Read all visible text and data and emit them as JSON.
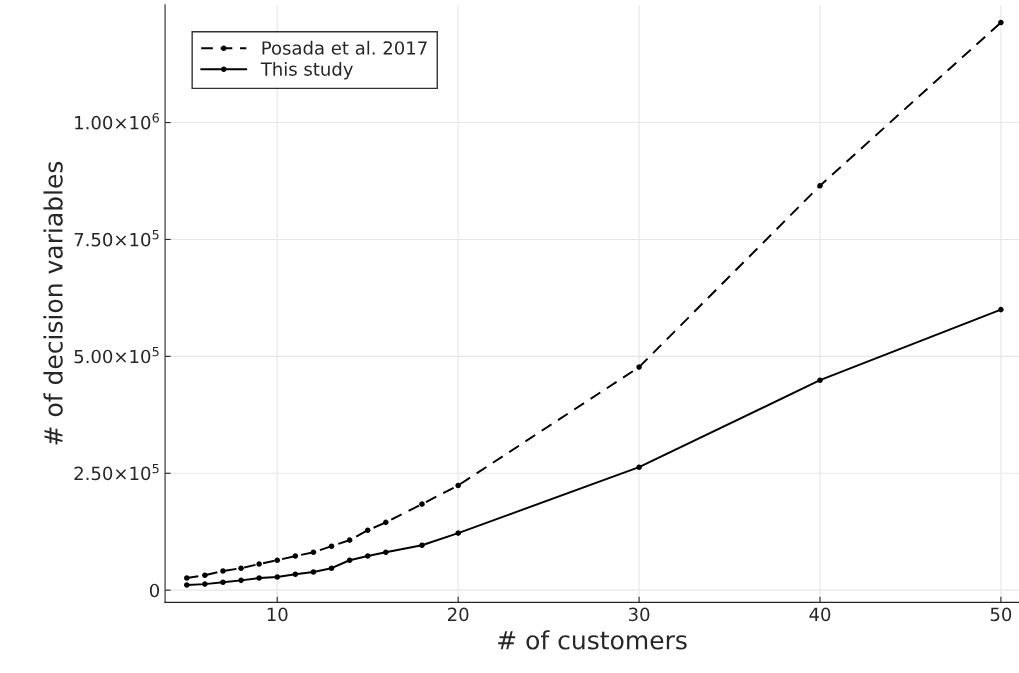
{
  "chart_data": {
    "type": "line",
    "xlabel": "# of customers",
    "ylabel": "# of decision variables",
    "x": [
      5,
      6,
      7,
      8,
      9,
      10,
      11,
      12,
      13,
      14,
      15,
      16,
      18,
      20,
      30,
      40,
      50
    ],
    "series": [
      {
        "name": "Posada et al. 2017",
        "color": "#000000",
        "line_style": "dashed",
        "values": [
          26000,
          32000,
          41000,
          47000,
          56000,
          64000,
          73000,
          81000,
          94000,
          107000,
          128000,
          145000,
          184000,
          224000,
          477000,
          865000,
          1214000
        ]
      },
      {
        "name": "This study",
        "color": "#000000",
        "line_style": "solid",
        "values": [
          11000,
          13000,
          17000,
          21000,
          26000,
          28000,
          34000,
          39000,
          47000,
          64000,
          73000,
          81000,
          96000,
          122000,
          263000,
          449000,
          600000
        ]
      }
    ],
    "marker": "circle",
    "xlim": [
      3.8,
      51
    ],
    "xticks": [
      10,
      20,
      30,
      40,
      50
    ],
    "ylim": [
      -26000,
      1252000
    ],
    "yticks": [
      0,
      {
        "value": 250000,
        "label": "2.50×10$^{5}$"
      },
      {
        "value": 500000,
        "label": "5.00×10$^{5}$"
      },
      {
        "value": 750000,
        "label": "7.50×10$^{5}$"
      },
      {
        "value": 1000000,
        "label": "1.00×10$^{6}$"
      }
    ],
    "grid": true,
    "legend": "top left"
  }
}
